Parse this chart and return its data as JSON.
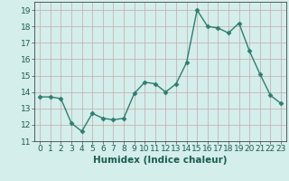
{
  "x": [
    0,
    1,
    2,
    3,
    4,
    5,
    6,
    7,
    8,
    9,
    10,
    11,
    12,
    13,
    14,
    15,
    16,
    17,
    18,
    19,
    20,
    21,
    22,
    23
  ],
  "y": [
    13.7,
    13.7,
    13.6,
    12.1,
    11.6,
    12.7,
    12.4,
    12.3,
    12.4,
    13.9,
    14.6,
    14.5,
    14.0,
    14.5,
    15.8,
    19.0,
    18.0,
    17.9,
    17.6,
    18.2,
    16.5,
    15.1,
    13.8,
    13.3
  ],
  "line_color": "#2e7d6e",
  "marker": "D",
  "marker_size": 2.5,
  "bg_color": "#d4eeeb",
  "grid_color": "#c4a8a8",
  "xlabel": "Humidex (Indice chaleur)",
  "ylim": [
    11,
    19.5
  ],
  "xlim": [
    -0.5,
    23.5
  ],
  "yticks": [
    11,
    12,
    13,
    14,
    15,
    16,
    17,
    18,
    19
  ],
  "xticks": [
    0,
    1,
    2,
    3,
    4,
    5,
    6,
    7,
    8,
    9,
    10,
    11,
    12,
    13,
    14,
    15,
    16,
    17,
    18,
    19,
    20,
    21,
    22,
    23
  ],
  "xlabel_fontsize": 7.5,
  "tick_fontsize": 6.5,
  "line_width": 1.0
}
